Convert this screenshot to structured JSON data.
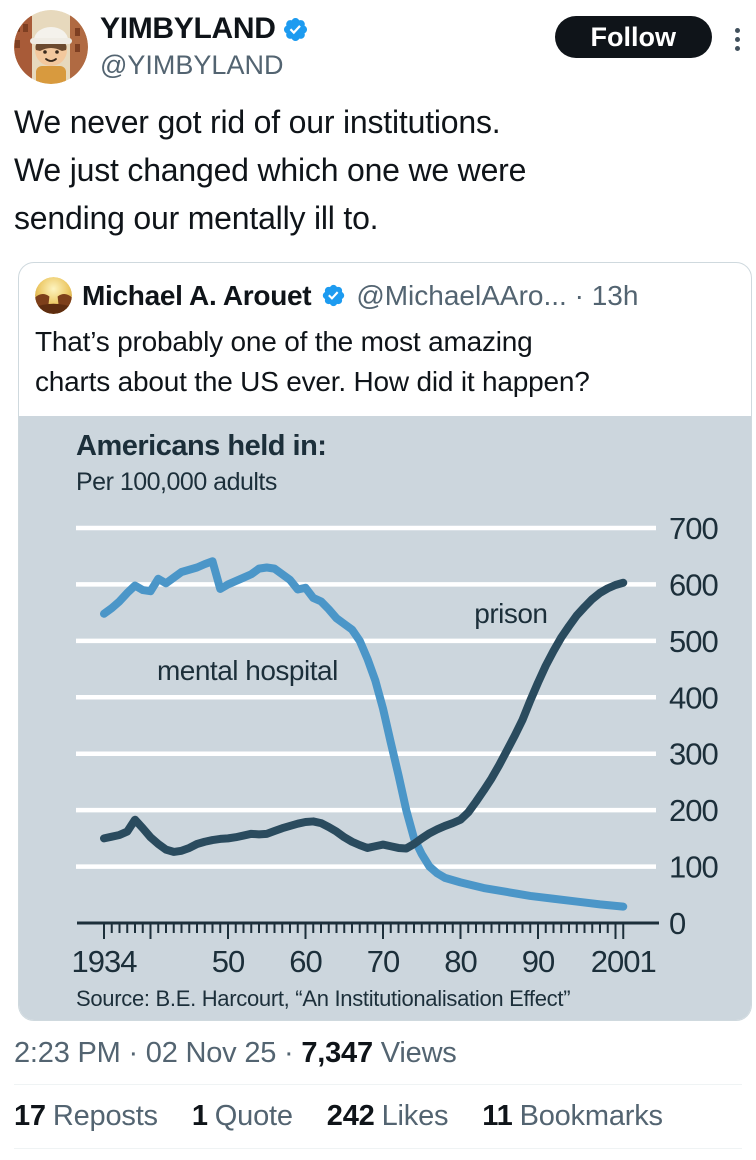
{
  "header": {
    "name": "YIMBYLAND",
    "handle": "@YIMBYLAND",
    "follow_label": "Follow"
  },
  "tweet": {
    "lines": [
      "We never got rid of our institutions.",
      "We just changed which one we were",
      "sending our mentally ill to."
    ]
  },
  "quote": {
    "name": "Michael A. Arouet",
    "handle_time": "@MichaelAAro... · 13h",
    "text_lines": [
      "That’s probably one of the most amazing",
      "charts about the US ever. How did it happen?"
    ]
  },
  "chart_data": {
    "type": "line",
    "title": "Americans held in:",
    "subtitle": "Per 100,000 adults",
    "source": "Source: B.E. Harcourt, “An Institutionalisation Effect”",
    "bg_color": "#ccd6dd",
    "grid_color": "#ffffff",
    "axis_color": "#1c2f3a",
    "xlim": [
      1933,
      2002
    ],
    "ylim": [
      0,
      700
    ],
    "y_ticks": [
      0,
      100,
      200,
      300,
      400,
      500,
      600,
      700
    ],
    "x_ticks": [
      {
        "label": "1934",
        "year": 1934
      },
      {
        "label": "50",
        "year": 1950
      },
      {
        "label": "60",
        "year": 1960
      },
      {
        "label": "70",
        "year": 1970
      },
      {
        "label": "80",
        "year": 1980
      },
      {
        "label": "90",
        "year": 1990
      },
      {
        "label": "2001",
        "year": 2001
      }
    ],
    "legend_position": "inline-labels",
    "grid": true,
    "series": [
      {
        "name": "mental hospital",
        "color": "#4b96c8",
        "label_anchor": {
          "year": 1952.5,
          "value": 447
        },
        "points": [
          [
            1934,
            548
          ],
          [
            1935,
            558
          ],
          [
            1936,
            570
          ],
          [
            1937,
            585
          ],
          [
            1938,
            598
          ],
          [
            1939,
            590
          ],
          [
            1940,
            588
          ],
          [
            1941,
            610
          ],
          [
            1942,
            602
          ],
          [
            1943,
            612
          ],
          [
            1944,
            622
          ],
          [
            1945,
            626
          ],
          [
            1946,
            630
          ],
          [
            1947,
            636
          ],
          [
            1948,
            641
          ],
          [
            1949,
            592
          ],
          [
            1950,
            600
          ],
          [
            1951,
            606
          ],
          [
            1952,
            612
          ],
          [
            1953,
            618
          ],
          [
            1954,
            628
          ],
          [
            1955,
            630
          ],
          [
            1956,
            628
          ],
          [
            1957,
            618
          ],
          [
            1958,
            608
          ],
          [
            1959,
            591
          ],
          [
            1960,
            594
          ],
          [
            1961,
            576
          ],
          [
            1962,
            570
          ],
          [
            1963,
            556
          ],
          [
            1964,
            540
          ],
          [
            1965,
            530
          ],
          [
            1966,
            520
          ],
          [
            1967,
            500
          ],
          [
            1968,
            468
          ],
          [
            1969,
            430
          ],
          [
            1970,
            380
          ],
          [
            1971,
            320
          ],
          [
            1972,
            262
          ],
          [
            1973,
            200
          ],
          [
            1974,
            150
          ],
          [
            1975,
            122
          ],
          [
            1976,
            100
          ],
          [
            1977,
            88
          ],
          [
            1978,
            80
          ],
          [
            1980,
            72
          ],
          [
            1983,
            62
          ],
          [
            1986,
            55
          ],
          [
            1989,
            48
          ],
          [
            1992,
            43
          ],
          [
            1995,
            38
          ],
          [
            1998,
            33
          ],
          [
            2001,
            29
          ]
        ]
      },
      {
        "name": "prison",
        "color": "#2a4b5e",
        "label_anchor": {
          "year": 1986.5,
          "value": 548
        },
        "points": [
          [
            1934,
            150
          ],
          [
            1935,
            153
          ],
          [
            1936,
            156
          ],
          [
            1937,
            162
          ],
          [
            1938,
            183
          ],
          [
            1939,
            168
          ],
          [
            1940,
            152
          ],
          [
            1941,
            140
          ],
          [
            1942,
            130
          ],
          [
            1943,
            126
          ],
          [
            1944,
            128
          ],
          [
            1945,
            133
          ],
          [
            1946,
            140
          ],
          [
            1947,
            144
          ],
          [
            1948,
            147
          ],
          [
            1949,
            149
          ],
          [
            1950,
            150
          ],
          [
            1951,
            152
          ],
          [
            1952,
            155
          ],
          [
            1953,
            158
          ],
          [
            1954,
            157
          ],
          [
            1955,
            158
          ],
          [
            1956,
            163
          ],
          [
            1957,
            168
          ],
          [
            1958,
            172
          ],
          [
            1959,
            176
          ],
          [
            1960,
            179
          ],
          [
            1961,
            180
          ],
          [
            1962,
            177
          ],
          [
            1963,
            170
          ],
          [
            1964,
            162
          ],
          [
            1965,
            152
          ],
          [
            1966,
            144
          ],
          [
            1967,
            138
          ],
          [
            1968,
            133
          ],
          [
            1969,
            136
          ],
          [
            1970,
            139
          ],
          [
            1971,
            136
          ],
          [
            1972,
            133
          ],
          [
            1973,
            132
          ],
          [
            1974,
            140
          ],
          [
            1975,
            150
          ],
          [
            1976,
            159
          ],
          [
            1977,
            166
          ],
          [
            1978,
            172
          ],
          [
            1979,
            177
          ],
          [
            1980,
            183
          ],
          [
            1981,
            196
          ],
          [
            1982,
            215
          ],
          [
            1983,
            235
          ],
          [
            1984,
            256
          ],
          [
            1985,
            280
          ],
          [
            1986,
            306
          ],
          [
            1987,
            332
          ],
          [
            1988,
            360
          ],
          [
            1989,
            394
          ],
          [
            1990,
            426
          ],
          [
            1991,
            456
          ],
          [
            1992,
            482
          ],
          [
            1993,
            506
          ],
          [
            1994,
            526
          ],
          [
            1995,
            545
          ],
          [
            1996,
            560
          ],
          [
            1997,
            574
          ],
          [
            1998,
            585
          ],
          [
            1999,
            593
          ],
          [
            2000,
            599
          ],
          [
            2001,
            603
          ]
        ]
      }
    ]
  },
  "footer": {
    "prefix": "2:23 PM · 02 Nov 25 · ",
    "views_count": "7,347",
    "views_label": " Views"
  },
  "stats": [
    {
      "count": "17",
      "label": "Reposts"
    },
    {
      "count": "1",
      "label": "Quote"
    },
    {
      "count": "242",
      "label": "Likes"
    },
    {
      "count": "11",
      "label": "Bookmarks"
    }
  ],
  "colors": {
    "accent_blue": "#1d9bf0",
    "text_primary": "#0f1419",
    "text_secondary": "#536471",
    "follow_bg": "#0f1419"
  }
}
